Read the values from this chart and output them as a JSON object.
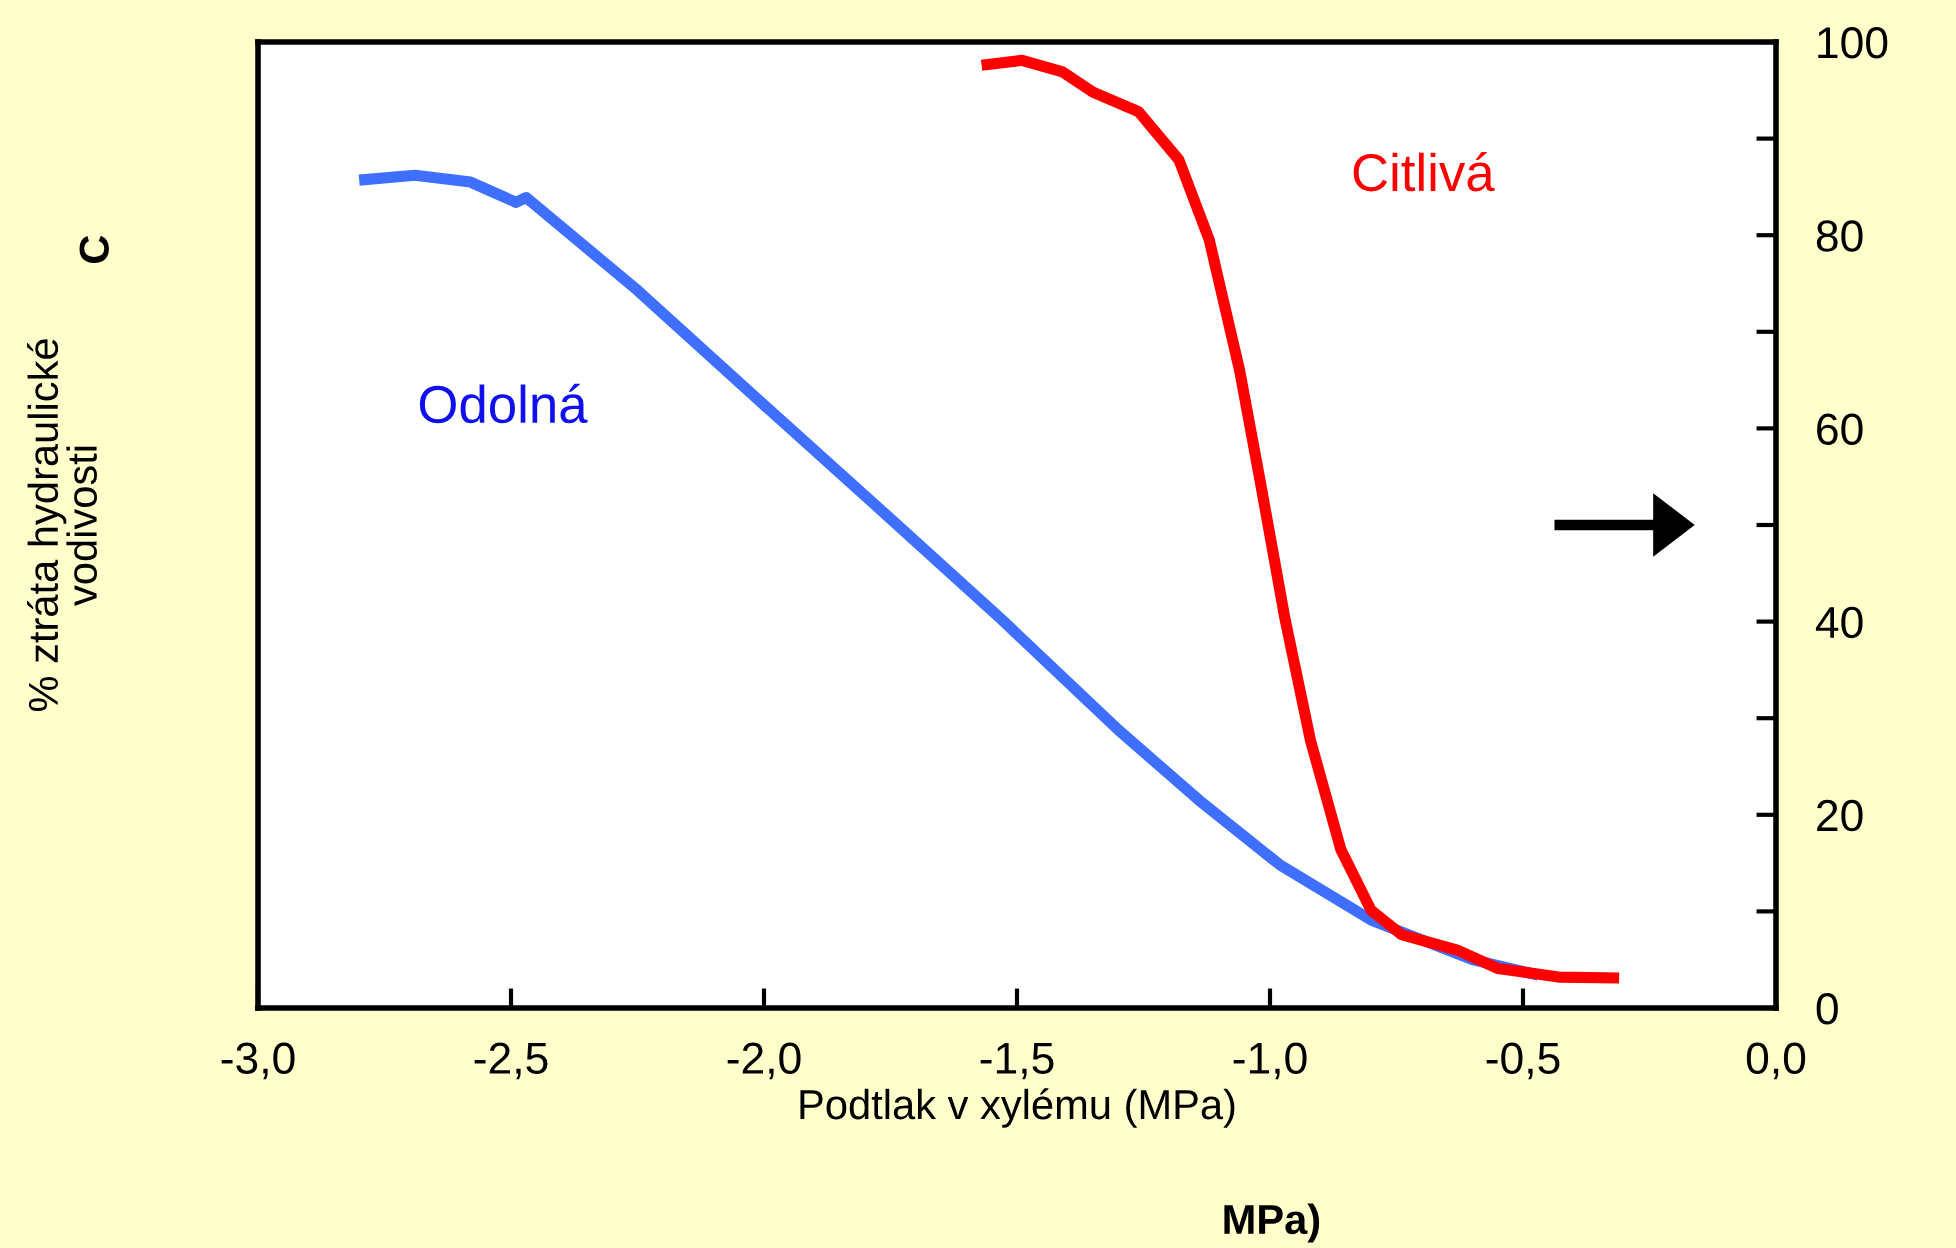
{
  "chart_data": {
    "type": "line",
    "xlabel": "Podtlak v xylému (MPa)",
    "ylabel": "% ztráta hydraulické\nvodivosti",
    "annotations": [
      "C",
      "MPa)"
    ],
    "xlim": [
      -3,
      0
    ],
    "ylim": [
      0,
      100
    ],
    "xticks": [
      {
        "value": -3,
        "label": "-3,0"
      },
      {
        "value": -2.5,
        "label": "-2,5"
      },
      {
        "value": -2,
        "label": "-2,0"
      },
      {
        "value": -1.5,
        "label": "-1,5"
      },
      {
        "value": -1,
        "label": "-1,0"
      },
      {
        "value": -0.5,
        "label": "-0,5"
      },
      {
        "value": 0,
        "label": "0,0"
      }
    ],
    "yticks": [
      0,
      {
        "value": 10,
        "label": null
      },
      20,
      {
        "value": 30,
        "label": null
      },
      40,
      {
        "value": 50,
        "label": null
      },
      60,
      {
        "value": 70,
        "label": null
      },
      80,
      {
        "value": 90,
        "label": null
      },
      100
    ],
    "grid": false,
    "legend": false,
    "marker": "none",
    "line_style": "solid",
    "series": [
      {
        "name": "Odolná",
        "color": "#3f6fff",
        "x": [
          -2.8,
          -2.69,
          -2.58,
          -2.49,
          -2.47,
          -2.25,
          -2.01,
          -1.77,
          -1.53,
          -1.3,
          -1.14,
          -0.98,
          -0.8,
          -0.6,
          -0.47
        ],
        "values": [
          85.7,
          86.2,
          85.5,
          83.4,
          83.9,
          74.3,
          62.9,
          51.6,
          40.2,
          28.8,
          21.5,
          14.8,
          9.1,
          5.0,
          3.4
        ]
      },
      {
        "name": "Citlivá",
        "color": "#ff0000",
        "x": [
          -1.57,
          -1.49,
          -1.41,
          -1.35,
          -1.26,
          -1.18,
          -1.12,
          -1.06,
          -1.02,
          -0.97,
          -0.92,
          -0.86,
          -0.8,
          -0.74,
          -0.63,
          -0.55,
          -0.43,
          -0.31
        ],
        "values": [
          97.6,
          98.1,
          96.9,
          94.8,
          92.8,
          87.8,
          79.5,
          66.0,
          54.7,
          40.2,
          27.7,
          16.4,
          10.1,
          7.6,
          6.0,
          4.1,
          3.2,
          3.1
        ]
      }
    ]
  }
}
